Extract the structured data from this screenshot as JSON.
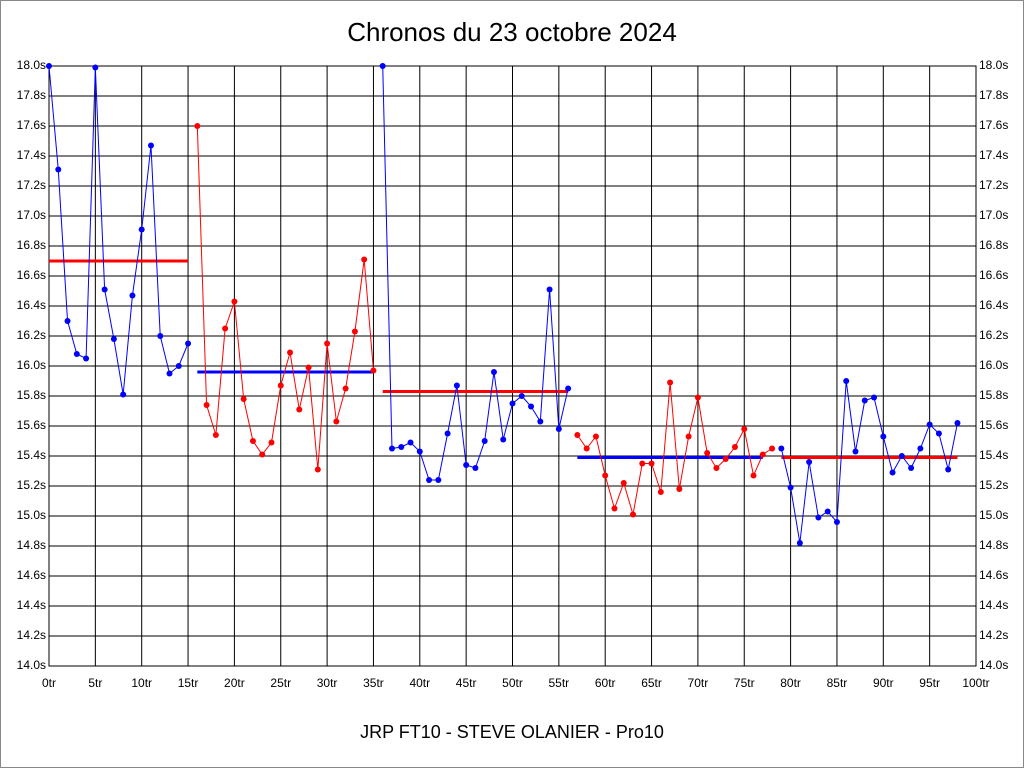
{
  "chart_data": {
    "type": "line",
    "title": "Chronos du 23 octobre 2024",
    "footer": "JRP FT10 - STEVE OLANIER - Pro10",
    "xlim": [
      0,
      100
    ],
    "ylim": [
      14.0,
      18.0
    ],
    "grid": true,
    "xticks": [
      {
        "value": 0,
        "label": "0tr"
      },
      {
        "value": 5,
        "label": "5tr"
      },
      {
        "value": 10,
        "label": "10tr"
      },
      {
        "value": 15,
        "label": "15tr"
      },
      {
        "value": 20,
        "label": "20tr"
      },
      {
        "value": 25,
        "label": "25tr"
      },
      {
        "value": 30,
        "label": "30tr"
      },
      {
        "value": 35,
        "label": "35tr"
      },
      {
        "value": 40,
        "label": "40tr"
      },
      {
        "value": 45,
        "label": "45tr"
      },
      {
        "value": 50,
        "label": "50tr"
      },
      {
        "value": 55,
        "label": "55tr"
      },
      {
        "value": 60,
        "label": "60tr"
      },
      {
        "value": 65,
        "label": "65tr"
      },
      {
        "value": 70,
        "label": "70tr"
      },
      {
        "value": 75,
        "label": "75tr"
      },
      {
        "value": 80,
        "label": "80tr"
      },
      {
        "value": 85,
        "label": "85tr"
      },
      {
        "value": 90,
        "label": "90tr"
      },
      {
        "value": 95,
        "label": "95tr"
      },
      {
        "value": 100,
        "label": "100tr"
      }
    ],
    "yticks": [
      {
        "value": 14.0,
        "label": "14.0s"
      },
      {
        "value": 14.2,
        "label": "14.2s"
      },
      {
        "value": 14.4,
        "label": "14.4s"
      },
      {
        "value": 14.6,
        "label": "14.6s"
      },
      {
        "value": 14.8,
        "label": "14.8s"
      },
      {
        "value": 15.0,
        "label": "15.0s"
      },
      {
        "value": 15.2,
        "label": "15.2s"
      },
      {
        "value": 15.4,
        "label": "15.4s"
      },
      {
        "value": 15.6,
        "label": "15.6s"
      },
      {
        "value": 15.8,
        "label": "15.8s"
      },
      {
        "value": 16.0,
        "label": "16.0s"
      },
      {
        "value": 16.2,
        "label": "16.2s"
      },
      {
        "value": 16.4,
        "label": "16.4s"
      },
      {
        "value": 16.6,
        "label": "16.6s"
      },
      {
        "value": 16.8,
        "label": "16.8s"
      },
      {
        "value": 17.0,
        "label": "17.0s"
      },
      {
        "value": 17.2,
        "label": "17.2s"
      },
      {
        "value": 17.4,
        "label": "17.4s"
      },
      {
        "value": 17.6,
        "label": "17.6s"
      },
      {
        "value": 17.8,
        "label": "17.8s"
      },
      {
        "value": 18.0,
        "label": "18.0s"
      }
    ],
    "series": [
      {
        "color": "#0000ff",
        "x": [
          0,
          1,
          2,
          3,
          4,
          5,
          6,
          7,
          8,
          9,
          10,
          11,
          12,
          13,
          14,
          15
        ],
        "values": [
          18.0,
          17.31,
          16.3,
          16.08,
          16.05,
          17.99,
          16.51,
          16.18,
          15.81,
          16.47,
          16.91,
          17.47,
          16.2,
          15.95,
          16.0,
          16.15
        ]
      },
      {
        "color": "#ff0000",
        "x": [
          16,
          17,
          18,
          19,
          20,
          21,
          22,
          23,
          24,
          25,
          26,
          27,
          28,
          29,
          30,
          31,
          32,
          33,
          34,
          35
        ],
        "values": [
          17.6,
          15.74,
          15.54,
          16.25,
          16.43,
          15.78,
          15.5,
          15.41,
          15.49,
          15.87,
          16.09,
          15.71,
          15.99,
          15.31,
          16.15,
          15.63,
          15.85,
          16.23,
          16.71,
          15.97
        ]
      },
      {
        "color": "#0000ff",
        "x": [
          36,
          37,
          38,
          39,
          40,
          41,
          42,
          43,
          44,
          45,
          46,
          47,
          48,
          49,
          50,
          51,
          52,
          53,
          54,
          55,
          56
        ],
        "values": [
          18.0,
          15.45,
          15.46,
          15.49,
          15.43,
          15.24,
          15.24,
          15.55,
          15.87,
          15.34,
          15.32,
          15.5,
          15.96,
          15.51,
          15.75,
          15.8,
          15.73,
          15.63,
          16.51,
          15.58,
          15.85
        ]
      },
      {
        "color": "#ff0000",
        "x": [
          57,
          58,
          59,
          60,
          61,
          62,
          63,
          64,
          65,
          66,
          67,
          68,
          69,
          70,
          71,
          72,
          73,
          74,
          75,
          76,
          77,
          78
        ],
        "values": [
          15.54,
          15.45,
          15.53,
          15.27,
          15.05,
          15.22,
          15.01,
          15.35,
          15.35,
          15.16,
          15.89,
          15.18,
          15.53,
          15.79,
          15.42,
          15.32,
          15.38,
          15.46,
          15.58,
          15.27,
          15.41,
          15.45
        ]
      },
      {
        "color": "#0000ff",
        "x": [
          79,
          80,
          81,
          82,
          83,
          84,
          85,
          86,
          87,
          88,
          89,
          90,
          91,
          92,
          93,
          94,
          95,
          96,
          97,
          98
        ],
        "values": [
          15.45,
          15.19,
          14.82,
          15.36,
          14.99,
          15.03,
          14.96,
          15.9,
          15.43,
          15.77,
          15.79,
          15.53,
          15.29,
          15.4,
          15.32,
          15.45,
          15.61,
          15.55,
          15.31,
          15.62
        ]
      }
    ],
    "mean_lines": [
      {
        "color": "#ff0000",
        "x": [
          0,
          15
        ],
        "value": 16.7
      },
      {
        "color": "#0000ff",
        "x": [
          16,
          35
        ],
        "value": 15.96
      },
      {
        "color": "#ff0000",
        "x": [
          36,
          56
        ],
        "value": 15.83
      },
      {
        "color": "#0000ff",
        "x": [
          57,
          77
        ],
        "value": 15.39
      },
      {
        "color": "#ff0000",
        "x": [
          79,
          98
        ],
        "value": 15.39
      }
    ]
  }
}
